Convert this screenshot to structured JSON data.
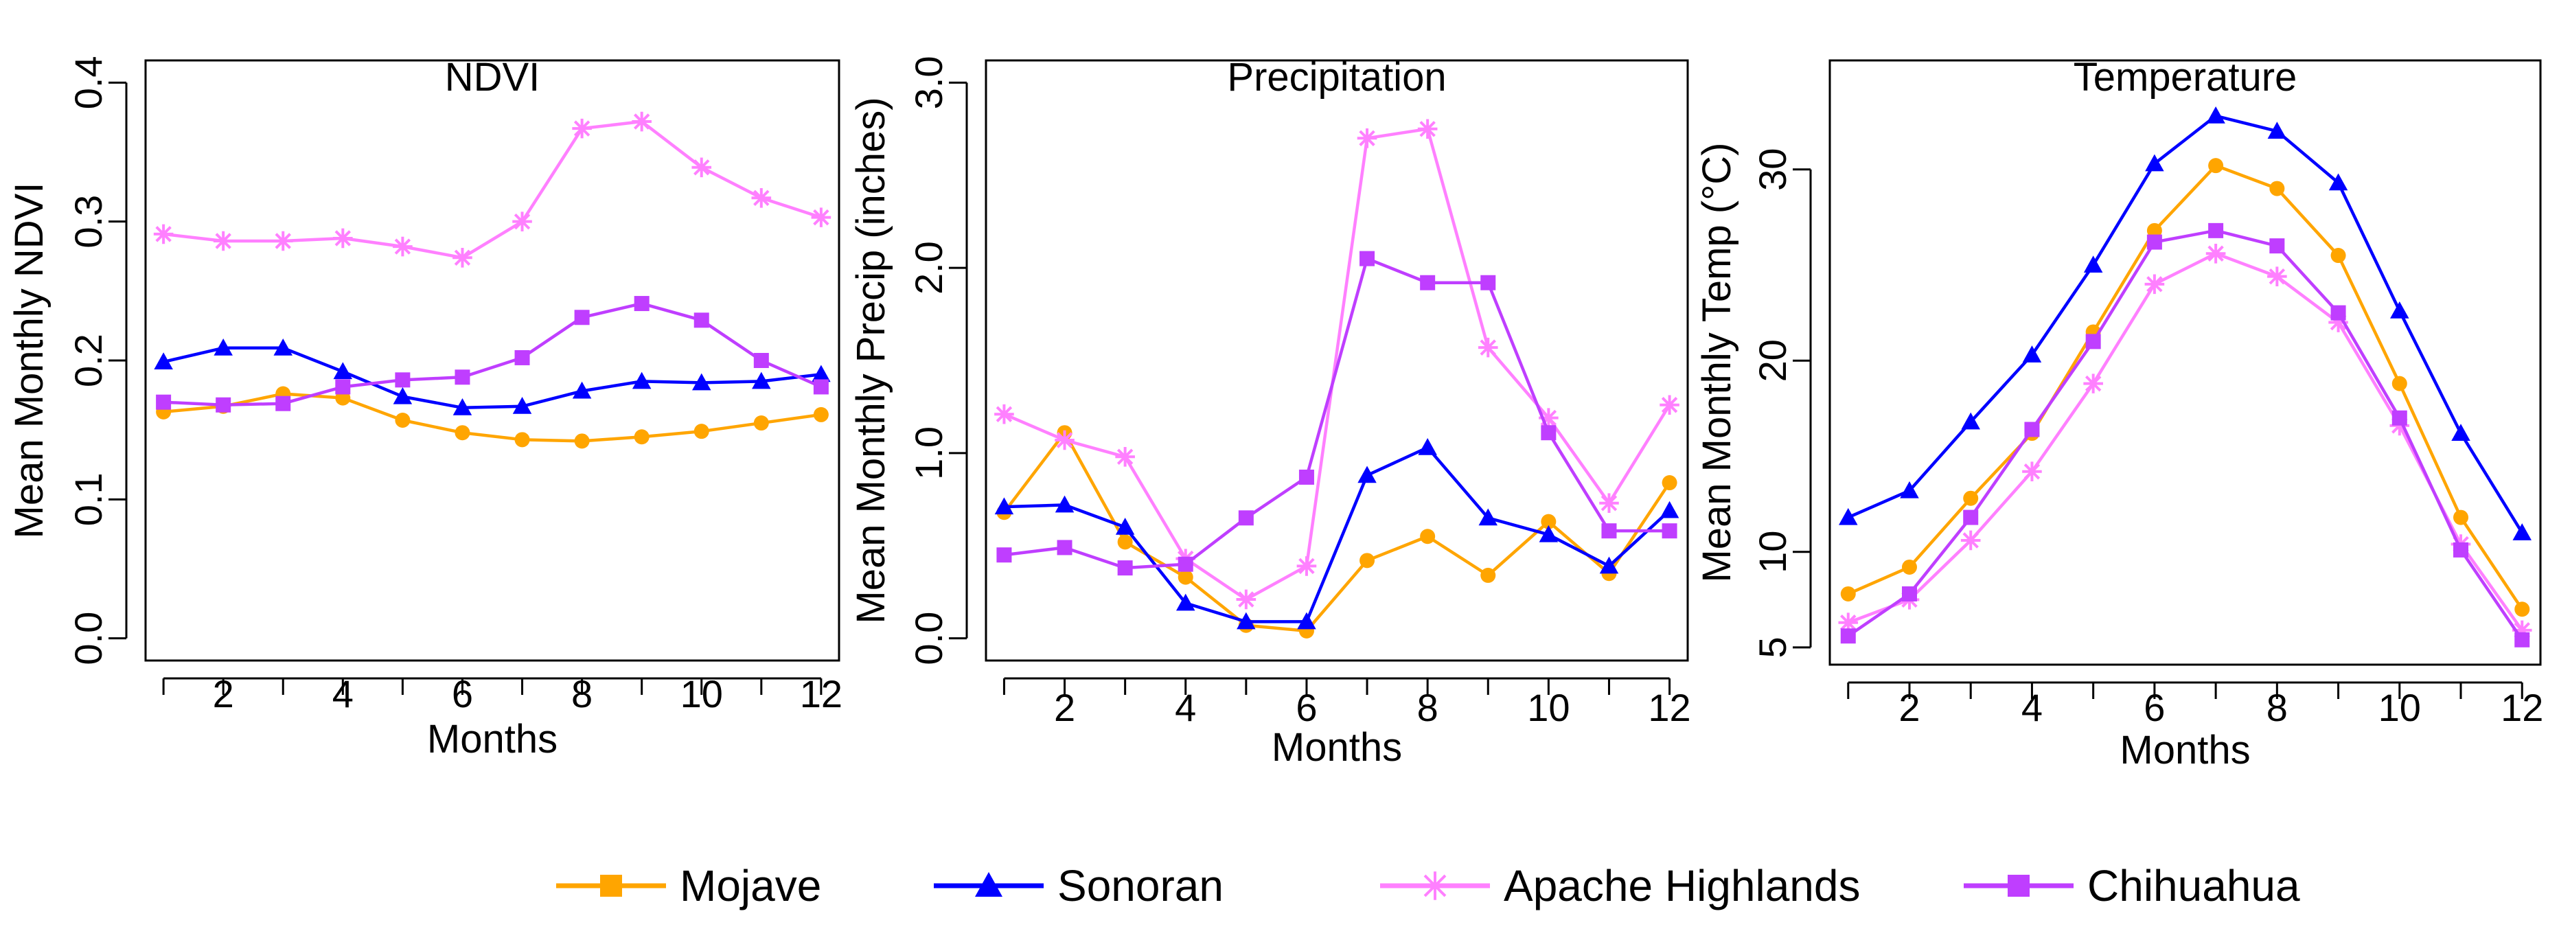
{
  "colors": {
    "Mojave": "#ffa500",
    "Sonoran": "#0000ff",
    "Apache Highlands": "#ff80ff",
    "Chihuahua": "#bf3eff"
  },
  "markers": {
    "Mojave": "circle",
    "Sonoran": "triangle",
    "Apache Highlands": "asterisk",
    "Chihuahua": "square"
  },
  "legend": {
    "placement": "bottom-center",
    "items": [
      {
        "name": "Mojave",
        "legend_marker": "square"
      },
      {
        "name": "Sonoran",
        "legend_marker": "triangle"
      },
      {
        "name": "Apache Highlands",
        "legend_marker": "asterisk"
      },
      {
        "name": "Chihuahua",
        "legend_marker": "square"
      }
    ]
  },
  "chart_data": [
    {
      "type": "line",
      "title": "NDVI",
      "xlabel": "Months",
      "ylabel": "Mean Monthly NDVI",
      "x": [
        1,
        2,
        3,
        4,
        5,
        6,
        7,
        8,
        9,
        10,
        11,
        12
      ],
      "xticks": [
        2,
        4,
        6,
        8,
        10,
        12
      ],
      "xlim": [
        0.7,
        12.3
      ],
      "yticks": [
        0.0,
        0.1,
        0.2,
        0.3,
        0.4
      ],
      "ytick_labels": [
        "0.0",
        "0.1",
        "0.2",
        "0.3",
        "0.4"
      ],
      "ylim": [
        -0.016,
        0.416
      ],
      "series": [
        {
          "name": "Mojave",
          "values": [
            0.163,
            0.167,
            0.176,
            0.173,
            0.157,
            0.148,
            0.143,
            0.142,
            0.145,
            0.149,
            0.155,
            0.161
          ]
        },
        {
          "name": "Sonoran",
          "values": [
            0.199,
            0.209,
            0.209,
            0.192,
            0.174,
            0.166,
            0.167,
            0.178,
            0.185,
            0.184,
            0.185,
            0.19
          ]
        },
        {
          "name": "Apache Highlands",
          "values": [
            0.291,
            0.286,
            0.286,
            0.288,
            0.282,
            0.274,
            0.3,
            0.367,
            0.372,
            0.339,
            0.317,
            0.303
          ]
        },
        {
          "name": "Chihuahua",
          "values": [
            0.17,
            0.168,
            0.169,
            0.181,
            0.186,
            0.188,
            0.202,
            0.231,
            0.241,
            0.229,
            0.2,
            0.181
          ]
        }
      ]
    },
    {
      "type": "line",
      "title": "Precipitation",
      "xlabel": "Months",
      "ylabel": "Mean Monthly Precip (inches)",
      "x": [
        1,
        2,
        3,
        4,
        5,
        6,
        7,
        8,
        9,
        10,
        11,
        12
      ],
      "xticks": [
        2,
        4,
        6,
        8,
        10,
        12
      ],
      "xlim": [
        0.7,
        12.3
      ],
      "yticks": [
        0.0,
        1.0,
        2.0,
        3.0
      ],
      "ytick_labels": [
        "0.0",
        "1.0",
        "2.0",
        "3.0"
      ],
      "ylim": [
        -0.12,
        3.12
      ],
      "series": [
        {
          "name": "Mojave",
          "values": [
            0.68,
            1.11,
            0.52,
            0.33,
            0.07,
            0.04,
            0.42,
            0.55,
            0.34,
            0.63,
            0.35,
            0.84
          ]
        },
        {
          "name": "Sonoran",
          "values": [
            0.71,
            0.72,
            0.6,
            0.19,
            0.09,
            0.09,
            0.88,
            1.03,
            0.65,
            0.56,
            0.39,
            0.69
          ]
        },
        {
          "name": "Apache Highlands",
          "values": [
            1.21,
            1.07,
            0.98,
            0.43,
            0.21,
            0.39,
            2.7,
            2.75,
            1.57,
            1.19,
            0.73,
            1.26
          ]
        },
        {
          "name": "Chihuahua",
          "values": [
            0.45,
            0.49,
            0.38,
            0.4,
            0.65,
            0.87,
            2.05,
            1.92,
            1.92,
            1.11,
            0.58,
            0.58
          ]
        }
      ]
    },
    {
      "type": "line",
      "title": "Temperature",
      "xlabel": "Months",
      "ylabel": "Mean Monthly Temp (°C)",
      "x": [
        1,
        2,
        3,
        4,
        5,
        6,
        7,
        8,
        9,
        10,
        11,
        12
      ],
      "xticks": [
        2,
        4,
        6,
        8,
        10,
        12
      ],
      "xlim": [
        0.7,
        12.3
      ],
      "yticks": [
        5,
        10,
        20,
        30
      ],
      "ytick_labels": [
        "5",
        "10",
        "20",
        "30"
      ],
      "ylim": [
        4.1,
        35.7
      ],
      "series": [
        {
          "name": "Mojave",
          "values": [
            7.8,
            9.2,
            12.8,
            16.2,
            21.5,
            26.8,
            30.2,
            29.0,
            25.5,
            18.8,
            11.8,
            7.0
          ]
        },
        {
          "name": "Sonoran",
          "values": [
            11.8,
            13.2,
            16.8,
            20.3,
            25.0,
            30.3,
            32.8,
            32.0,
            29.3,
            22.6,
            16.2,
            11.0
          ]
        },
        {
          "name": "Apache Highlands",
          "values": [
            6.3,
            7.5,
            10.6,
            14.2,
            18.8,
            24.0,
            25.6,
            24.4,
            22.0,
            16.6,
            10.4,
            5.9
          ]
        },
        {
          "name": "Chihuahua",
          "values": [
            5.6,
            7.8,
            11.8,
            16.4,
            21.0,
            26.2,
            26.8,
            26.0,
            22.5,
            17.0,
            10.1,
            5.4
          ]
        }
      ]
    }
  ]
}
